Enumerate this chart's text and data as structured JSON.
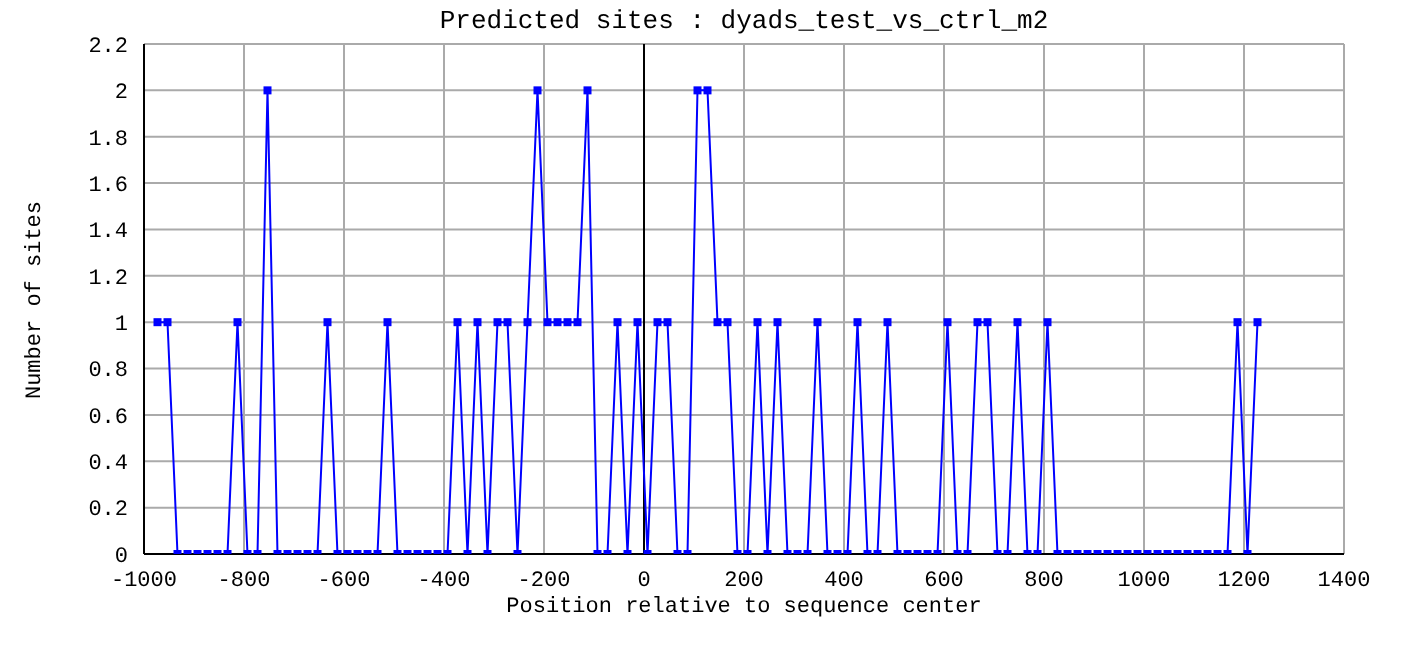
{
  "chart_data": {
    "type": "line",
    "title": "Predicted sites : dyads_test_vs_ctrl_m2",
    "xlabel": "Position relative to sequence center",
    "ylabel": "Number of sites",
    "x": [
      -973,
      -953,
      -933,
      -913,
      -893,
      -873,
      -853,
      -833,
      -813,
      -793,
      -773,
      -753,
      -733,
      -713,
      -693,
      -673,
      -653,
      -633,
      -613,
      -593,
      -573,
      -553,
      -533,
      -513,
      -493,
      -473,
      -453,
      -433,
      -413,
      -393,
      -373,
      -353,
      -333,
      -313,
      -293,
      -273,
      -253,
      -233,
      -213,
      -193,
      -173,
      -153,
      -133,
      -113,
      -93,
      -73,
      -53,
      -33,
      -13,
      7,
      27,
      47,
      67,
      87,
      107,
      127,
      147,
      167,
      187,
      207,
      227,
      247,
      267,
      287,
      307,
      327,
      347,
      367,
      387,
      407,
      427,
      447,
      467,
      487,
      507,
      527,
      547,
      567,
      587,
      607,
      627,
      647,
      667,
      687,
      707,
      727,
      747,
      767,
      787,
      807,
      827,
      847,
      867,
      887,
      907,
      927,
      947,
      967,
      987,
      1007,
      1027,
      1047,
      1067,
      1087,
      1107,
      1127,
      1147,
      1167,
      1187,
      1207,
      1227
    ],
    "series": [
      {
        "color": "#0000ff",
        "values": [
          1,
          1,
          0,
          0,
          0,
          0,
          0,
          0,
          1,
          0,
          0,
          2,
          0,
          0,
          0,
          0,
          0,
          1,
          0,
          0,
          0,
          0,
          0,
          1,
          0,
          0,
          0,
          0,
          0,
          0,
          1,
          0,
          1,
          0,
          1,
          1,
          0,
          1,
          2,
          1,
          1,
          1,
          1,
          2,
          0,
          0,
          1,
          0,
          1,
          0,
          1,
          1,
          0,
          0,
          2,
          2,
          1,
          1,
          0,
          0,
          1,
          0,
          1,
          0,
          0,
          0,
          1,
          0,
          0,
          0,
          1,
          0,
          0,
          1,
          0,
          0,
          0,
          0,
          0,
          1,
          0,
          0,
          1,
          1,
          0,
          0,
          1,
          0,
          0,
          1,
          0,
          0,
          0,
          0,
          0,
          0,
          0,
          0,
          0,
          0,
          0,
          0,
          0,
          0,
          0,
          0,
          0,
          0,
          1,
          0,
          1
        ]
      }
    ],
    "xlim": [
      -1000,
      1400
    ],
    "xticks": [
      -1000,
      -800,
      -600,
      -400,
      -200,
      0,
      200,
      400,
      600,
      800,
      1000,
      1200,
      1400
    ],
    "ylim": [
      0,
      2.2
    ],
    "yticks": [
      0,
      0.2,
      0.4,
      0.6,
      0.8,
      1,
      1.2,
      1.4,
      1.6,
      1.8,
      2,
      2.2
    ],
    "ref_lines": [
      {
        "axis": "x",
        "value": 0,
        "color": "#000000"
      }
    ],
    "grid": true,
    "marker": "square",
    "line_style": "solid"
  }
}
